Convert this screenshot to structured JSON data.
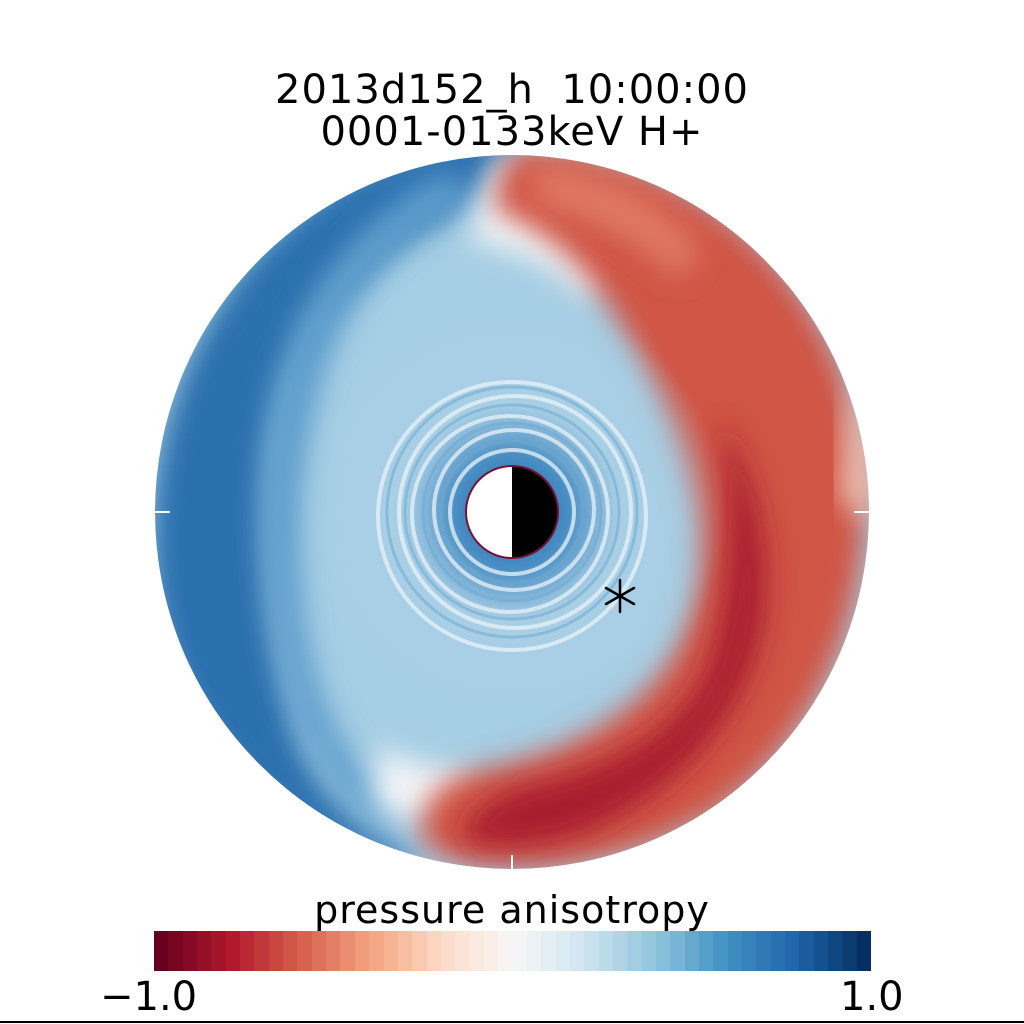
{
  "title": {
    "line1": "2013d152_h  10:00:00",
    "line2": "0001-0133keV H+"
  },
  "chart_data": {
    "type": "heatmap",
    "projection": "polar",
    "title": "2013d152_h  10:00:00",
    "subtitle": "0001-0133keV H+",
    "colorbar": {
      "label": "pressure anisotropy",
      "min": -1.0,
      "max": 1.0,
      "min_label": "−1.0",
      "max_label": "1.0",
      "colors": [
        "#67001f",
        "#b2182b",
        "#d6604d",
        "#f4a582",
        "#fddbc7",
        "#f7f7f7",
        "#d1e5f0",
        "#92c5de",
        "#4393c3",
        "#2166ac",
        "#053061"
      ]
    },
    "features": {
      "earth_symbol": "half-lit-earth",
      "marker": "asterisk"
    },
    "legend": "none",
    "grid": false
  }
}
